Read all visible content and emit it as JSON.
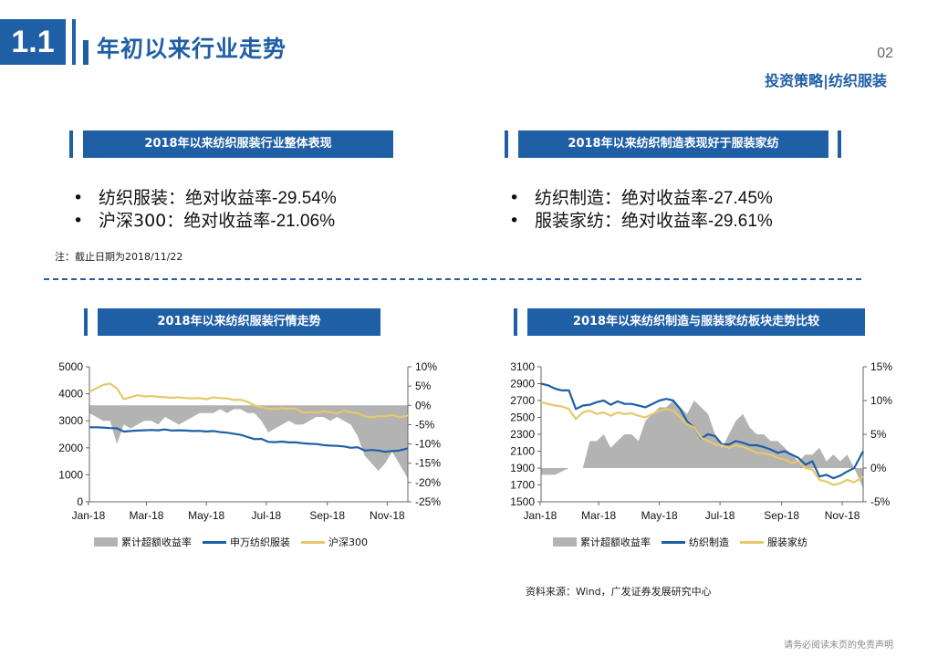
{
  "header": {
    "section_number": "1.1",
    "title": "年初以来行业走势",
    "page_number": "02",
    "tag": "投资策略|纺织服装"
  },
  "left_panel": {
    "banner": "2018年以来纺织服装行业整体表现",
    "bullets": [
      {
        "label": "纺织服装：绝对收益率",
        "value": "-29.54%"
      },
      {
        "label": "沪深300：绝对收益率",
        "value": "-21.06%"
      }
    ],
    "note": "注：截止日期为2018/11/22"
  },
  "right_panel": {
    "banner": "2018年以来纺织制造表现好于服装家纺",
    "bullets": [
      {
        "label": "纺织制造：绝对收益率",
        "value": "-27.45%"
      },
      {
        "label": "服装家纺：绝对收益率",
        "value": "-29.61%"
      }
    ]
  },
  "chart_banners": [
    "2018年以来纺织服装行情走势",
    "2018年以来纺织制造与服装家纺板块走势比较"
  ],
  "legends": [
    [
      "累计超额收益率",
      "申万纺织服装",
      "沪深300"
    ],
    [
      "累计超额收益率",
      "纺织制造",
      "服装家纺"
    ]
  ],
  "source": "资料来源：Wind，广发证券发展研究中心",
  "disclaimer": "请务必阅读末页的免责声明",
  "colors": {
    "accent": "#1f5fa6",
    "line_blue": "#1f5fa6",
    "line_yellow": "#e5c96a",
    "area_gray": "#b3b3b3"
  },
  "chart_data": [
    {
      "type": "line",
      "title": "2018年以来纺织服装行情走势",
      "x": [
        "2018-01-02",
        "2018-01-09",
        "2018-01-16",
        "2018-01-23",
        "2018-01-30",
        "2018-02-06",
        "2018-02-13",
        "2018-02-20",
        "2018-02-27",
        "2018-03-06",
        "2018-03-13",
        "2018-03-20",
        "2018-03-27",
        "2018-04-03",
        "2018-04-10",
        "2018-04-17",
        "2018-04-24",
        "2018-05-01",
        "2018-05-08",
        "2018-05-15",
        "2018-05-22",
        "2018-05-29",
        "2018-06-05",
        "2018-06-12",
        "2018-06-19",
        "2018-06-26",
        "2018-07-03",
        "2018-07-10",
        "2018-07-17",
        "2018-07-24",
        "2018-07-31",
        "2018-08-07",
        "2018-08-14",
        "2018-08-21",
        "2018-08-28",
        "2018-09-04",
        "2018-09-11",
        "2018-09-18",
        "2018-09-25",
        "2018-10-02",
        "2018-10-09",
        "2018-10-16",
        "2018-10-23",
        "2018-10-30",
        "2018-11-06",
        "2018-11-13",
        "2018-11-22"
      ],
      "xticks": [
        "Jan-18",
        "Mar-18",
        "May-18",
        "Jul-18",
        "Sep-18",
        "Nov-18"
      ],
      "xtick_dates": [
        "2018-01-01",
        "2018-03-01",
        "2018-05-01",
        "2018-07-01",
        "2018-09-01",
        "2018-11-01"
      ],
      "y_left_lim": [
        0,
        5000
      ],
      "y_left_ticks": [
        0,
        1000,
        2000,
        3000,
        4000,
        5000
      ],
      "y_right_lim": [
        -25,
        10
      ],
      "y_right_ticks": [
        "-25%",
        "-20%",
        "-15%",
        "-10%",
        "-5%",
        "0%",
        "5%",
        "10%"
      ],
      "y_right_values": [
        -25,
        -20,
        -15,
        -10,
        -5,
        0,
        5,
        10
      ],
      "series": [
        {
          "name": "累计超额收益率",
          "axis": "right",
          "kind": "area",
          "values": [
            -2,
            -3,
            -4,
            -4,
            -10,
            -5,
            -6,
            -5,
            -4,
            -4,
            -5,
            -3,
            -4,
            -5,
            -4,
            -3,
            -2,
            -2,
            -2,
            -1,
            -2,
            -1,
            -1,
            -2,
            -2,
            -4,
            -7,
            -6,
            -5,
            -4,
            -5,
            -5,
            -4,
            -3,
            -3,
            -4,
            -3,
            -4,
            -5,
            -8,
            -13,
            -15,
            -17,
            -15,
            -12,
            -15,
            -19
          ]
        },
        {
          "name": "申万纺织服装",
          "axis": "left",
          "kind": "line",
          "values": [
            2760,
            2760,
            2750,
            2730,
            2720,
            2600,
            2620,
            2640,
            2650,
            2660,
            2650,
            2680,
            2640,
            2650,
            2640,
            2620,
            2630,
            2600,
            2620,
            2580,
            2560,
            2520,
            2480,
            2400,
            2320,
            2330,
            2220,
            2210,
            2230,
            2200,
            2200,
            2170,
            2150,
            2140,
            2100,
            2080,
            2070,
            2050,
            2000,
            2020,
            1900,
            1920,
            1900,
            1850,
            1880,
            1900,
            1980
          ]
        },
        {
          "name": "沪深300",
          "axis": "left",
          "kind": "line",
          "values": [
            4080,
            4200,
            4330,
            4380,
            4200,
            3800,
            3870,
            3950,
            3900,
            3920,
            3890,
            3870,
            3850,
            3870,
            3840,
            3830,
            3840,
            3800,
            3870,
            3840,
            3830,
            3770,
            3780,
            3700,
            3570,
            3500,
            3450,
            3430,
            3470,
            3440,
            3460,
            3300,
            3320,
            3300,
            3350,
            3320,
            3270,
            3380,
            3310,
            3280,
            3170,
            3130,
            3180,
            3160,
            3220,
            3130,
            3200
          ]
        }
      ]
    },
    {
      "type": "line",
      "title": "2018年以来纺织制造与服装家纺板块走势比较",
      "x": [
        "2018-01-02",
        "2018-01-09",
        "2018-01-16",
        "2018-01-23",
        "2018-01-30",
        "2018-02-06",
        "2018-02-13",
        "2018-02-20",
        "2018-02-27",
        "2018-03-06",
        "2018-03-13",
        "2018-03-20",
        "2018-03-27",
        "2018-04-03",
        "2018-04-10",
        "2018-04-17",
        "2018-04-24",
        "2018-05-01",
        "2018-05-08",
        "2018-05-15",
        "2018-05-22",
        "2018-05-29",
        "2018-06-05",
        "2018-06-12",
        "2018-06-19",
        "2018-06-26",
        "2018-07-03",
        "2018-07-10",
        "2018-07-17",
        "2018-07-24",
        "2018-07-31",
        "2018-08-07",
        "2018-08-14",
        "2018-08-21",
        "2018-08-28",
        "2018-09-04",
        "2018-09-11",
        "2018-09-18",
        "2018-09-25",
        "2018-10-02",
        "2018-10-09",
        "2018-10-16",
        "2018-10-23",
        "2018-10-30",
        "2018-11-06",
        "2018-11-13",
        "2018-11-22"
      ],
      "xticks": [
        "Jan-18",
        "Mar-18",
        "May-18",
        "Jul-18",
        "Sep-18",
        "Nov-18"
      ],
      "xtick_dates": [
        "2018-01-01",
        "2018-03-01",
        "2018-05-01",
        "2018-07-01",
        "2018-09-01",
        "2018-11-01"
      ],
      "y_left_lim": [
        1500,
        3100
      ],
      "y_left_ticks": [
        1500,
        1700,
        1900,
        2100,
        2300,
        2500,
        2700,
        2900,
        3100
      ],
      "y_right_lim": [
        -5,
        15
      ],
      "y_right_ticks": [
        "-5%",
        "0%",
        "5%",
        "10%",
        "15%"
      ],
      "y_right_values": [
        -5,
        0,
        5,
        10,
        15
      ],
      "series": [
        {
          "name": "累计超额收益率",
          "axis": "right",
          "kind": "area",
          "values": [
            -1,
            -1,
            -1,
            -0.5,
            0,
            0,
            0,
            4,
            4,
            5,
            3,
            4,
            5,
            5,
            4,
            7,
            8,
            9,
            9,
            10,
            9,
            8,
            10,
            9,
            8,
            5,
            3,
            5,
            7,
            8,
            6,
            5,
            5,
            4,
            4,
            3,
            2,
            1,
            2,
            2,
            3,
            1,
            2,
            1,
            2,
            0,
            -3
          ]
        },
        {
          "name": "纺织制造",
          "axis": "left",
          "kind": "line",
          "values": [
            2900,
            2880,
            2840,
            2820,
            2820,
            2600,
            2640,
            2650,
            2680,
            2700,
            2650,
            2690,
            2660,
            2660,
            2640,
            2620,
            2660,
            2700,
            2720,
            2700,
            2600,
            2450,
            2380,
            2250,
            2300,
            2280,
            2180,
            2180,
            2220,
            2200,
            2170,
            2170,
            2150,
            2120,
            2080,
            2100,
            2060,
            2020,
            1940,
            1980,
            1800,
            1820,
            1780,
            1810,
            1860,
            1900,
            2100
          ]
        },
        {
          "name": "服装家纺",
          "axis": "left",
          "kind": "line",
          "values": [
            2680,
            2660,
            2640,
            2630,
            2600,
            2480,
            2560,
            2580,
            2540,
            2560,
            2520,
            2560,
            2540,
            2550,
            2520,
            2500,
            2540,
            2580,
            2600,
            2580,
            2500,
            2420,
            2380,
            2260,
            2220,
            2180,
            2170,
            2140,
            2170,
            2150,
            2120,
            2080,
            2070,
            2060,
            2020,
            2000,
            1960,
            1980,
            1900,
            1880,
            1760,
            1740,
            1700,
            1720,
            1760,
            1730,
            1800
          ]
        }
      ]
    }
  ]
}
